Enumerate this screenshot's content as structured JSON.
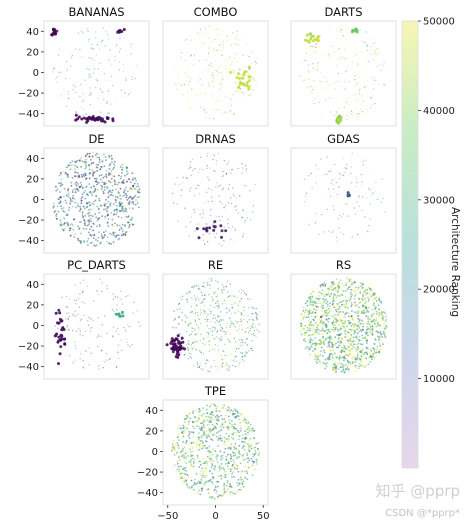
{
  "chart_data": {
    "type": "scatter",
    "xlim": [
      -55,
      55
    ],
    "ylim": [
      -52,
      50
    ],
    "xticks": [
      "−50",
      "0",
      "50"
    ],
    "yticks": [
      "40",
      "20",
      "0",
      "−20",
      "−40"
    ],
    "grid": false,
    "panels": [
      {
        "title": "BANANAS",
        "density": 0.35,
        "center": 0.55,
        "clusters": [
          {
            "x": 0,
            "y": -45,
            "spread": [
              20,
              3
            ],
            "value": 1200,
            "n": 40
          },
          {
            "x": -44,
            "y": 38,
            "spread": [
              3,
              4
            ],
            "value": 1000,
            "n": 15
          },
          {
            "x": 25,
            "y": 40,
            "spread": [
              4,
              2
            ],
            "value": 2000,
            "n": 8
          }
        ]
      },
      {
        "title": "COMBO",
        "density": 0.5,
        "center": 0.85,
        "clusters": [
          {
            "x": 30,
            "y": -5,
            "spread": [
              10,
              10
            ],
            "value": 46000,
            "n": 25
          }
        ]
      },
      {
        "title": "DARTS",
        "density": 0.45,
        "center": 0.8,
        "clusters": [
          {
            "x": -5,
            "y": -45,
            "spread": [
              3,
              3
            ],
            "value": 42000,
            "n": 20
          },
          {
            "x": -30,
            "y": 35,
            "spread": [
              8,
              6
            ],
            "value": 45000,
            "n": 15
          },
          {
            "x": 10,
            "y": 40,
            "spread": [
              6,
              4
            ],
            "value": 38000,
            "n": 8
          }
        ]
      },
      {
        "title": "DE",
        "density": 1.6,
        "center": 0.35,
        "clusters": []
      },
      {
        "title": "DRNAS",
        "density": 0.4,
        "center": 0.3,
        "clusters": [
          {
            "x": -5,
            "y": -30,
            "spread": [
              15,
              10
            ],
            "value": 5000,
            "n": 15
          }
        ]
      },
      {
        "title": "GDAS",
        "density": 0.25,
        "center": 0.5,
        "clusters": [
          {
            "x": 5,
            "y": 5,
            "spread": [
              3,
              3
            ],
            "value": 15000,
            "n": 8
          }
        ]
      },
      {
        "title": "PC_DARTS",
        "density": 0.35,
        "center": 0.35,
        "clusters": [
          {
            "x": -38,
            "y": -10,
            "spread": [
              6,
              20
            ],
            "value": 2000,
            "n": 30
          },
          {
            "x": 25,
            "y": 10,
            "spread": [
              6,
              4
            ],
            "value": 30000,
            "n": 8
          }
        ]
      },
      {
        "title": "RE",
        "density": 1.1,
        "center": 0.6,
        "clusters": [
          {
            "x": -40,
            "y": -20,
            "spread": [
              7,
              10
            ],
            "value": 1000,
            "n": 45
          }
        ]
      },
      {
        "title": "RS",
        "density": 2.6,
        "center": 0.7,
        "clusters": []
      },
      {
        "title": "TPE",
        "density": 1.8,
        "center": 0.65,
        "clusters": []
      }
    ],
    "colorbar": {
      "label": "Architecture Ranking",
      "min": 0,
      "max": 50000,
      "ticks": [
        "50000",
        "40000",
        "30000",
        "20000",
        "10000"
      ]
    },
    "colormap": [
      "#440154",
      "#3b528b",
      "#21918c",
      "#5ec962",
      "#fde725"
    ]
  },
  "watermark": {
    "line1": "知乎 @pprp",
    "line2": "CSDN @*pprp*"
  }
}
